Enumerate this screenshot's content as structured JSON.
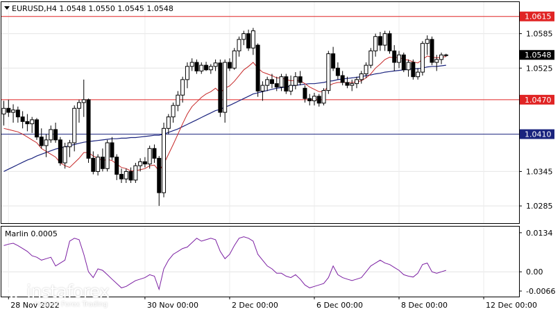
{
  "chart_data": [
    {
      "type": "candlestick",
      "title": "EURUSD,H4  1.0548 1.0550 1.0545 1.0548",
      "ylim": [
        1.0255,
        1.064
      ],
      "y_ticks": [
        "1.0585",
        "1.0525",
        "1.0345",
        "1.0285"
      ],
      "y_tick_values": [
        1.0585,
        1.0525,
        1.0345,
        1.0285
      ],
      "x_ticks": [
        "28 Nov 2022",
        "30 Nov 00:00",
        "2 Dec 00:00",
        "6 Dec 00:00",
        "8 Dec 00:00",
        "12 Dec 00:00"
      ],
      "x_tick_index": [
        1,
        30,
        48,
        66,
        84,
        102
      ],
      "horizontal_levels": [
        {
          "label": "1.0615",
          "value": 1.0615,
          "color": "#e02424"
        },
        {
          "label": "1.0470",
          "value": 1.047,
          "color": "#e02424"
        },
        {
          "label": "1.0410",
          "value": 1.041,
          "color": "#1a237e"
        }
      ],
      "current_price": {
        "label": "1.0548",
        "value": 1.0548
      },
      "candles": [
        [
          1.0445,
          1.0468,
          1.0425,
          1.0455
        ],
        [
          1.0455,
          1.047,
          1.044,
          1.0448
        ],
        [
          1.0448,
          1.0462,
          1.043,
          1.0452
        ],
        [
          1.0452,
          1.0458,
          1.043,
          1.044
        ],
        [
          1.044,
          1.045,
          1.042,
          1.0432
        ],
        [
          1.0432,
          1.0445,
          1.0415,
          1.0428
        ],
        [
          1.0428,
          1.044,
          1.0412,
          1.0435
        ],
        [
          1.0435,
          1.0438,
          1.04,
          1.0405
        ],
        [
          1.0405,
          1.042,
          1.0385,
          1.039
        ],
        [
          1.039,
          1.041,
          1.037,
          1.04
        ],
        [
          1.04,
          1.0425,
          1.0395,
          1.0418
        ],
        [
          1.0418,
          1.043,
          1.0395,
          1.04
        ],
        [
          1.04,
          1.0405,
          1.0355,
          1.036
        ],
        [
          1.036,
          1.0395,
          1.035,
          1.0388
        ],
        [
          1.0388,
          1.04,
          1.037,
          1.0395
        ],
        [
          1.0395,
          1.046,
          1.038,
          1.0455
        ],
        [
          1.0455,
          1.047,
          1.043,
          1.0465
        ],
        [
          1.0465,
          1.0505,
          1.044,
          1.047
        ],
        [
          1.047,
          1.0472,
          1.036,
          1.0368
        ],
        [
          1.0368,
          1.038,
          1.034,
          1.0345
        ],
        [
          1.0345,
          1.0375,
          1.0338,
          1.037
        ],
        [
          1.037,
          1.0385,
          1.0345,
          1.035
        ],
        [
          1.035,
          1.04,
          1.0345,
          1.0395
        ],
        [
          1.0395,
          1.0405,
          1.0365,
          1.037
        ],
        [
          1.037,
          1.0375,
          1.033,
          1.034
        ],
        [
          1.034,
          1.035,
          1.0325,
          1.0332
        ],
        [
          1.0332,
          1.035,
          1.0325,
          1.0345
        ],
        [
          1.0345,
          1.0352,
          1.0325,
          1.033
        ],
        [
          1.033,
          1.036,
          1.0325,
          1.0355
        ],
        [
          1.0355,
          1.0368,
          1.0345,
          1.0362
        ],
        [
          1.0362,
          1.037,
          1.0352,
          1.0358
        ],
        [
          1.0358,
          1.039,
          1.035,
          1.0385
        ],
        [
          1.0385,
          1.0392,
          1.036,
          1.0368
        ],
        [
          1.0368,
          1.0372,
          1.0285,
          1.0308
        ],
        [
          1.0308,
          1.043,
          1.03,
          1.042
        ],
        [
          1.042,
          1.0445,
          1.041,
          1.044
        ],
        [
          1.044,
          1.0465,
          1.043,
          1.046
        ],
        [
          1.046,
          1.0485,
          1.045,
          1.0478
        ],
        [
          1.0478,
          1.051,
          1.0465,
          1.0505
        ],
        [
          1.0505,
          1.0535,
          1.049,
          1.0528
        ],
        [
          1.0528,
          1.0542,
          1.052,
          1.0535
        ],
        [
          1.0535,
          1.054,
          1.0515,
          1.052
        ],
        [
          1.052,
          1.0535,
          1.0515,
          1.053
        ],
        [
          1.053,
          1.0536,
          1.052,
          1.0522
        ],
        [
          1.0522,
          1.0532,
          1.0515,
          1.0528
        ],
        [
          1.0528,
          1.054,
          1.052,
          1.0534
        ],
        [
          1.0534,
          1.054,
          1.044,
          1.0448
        ],
        [
          1.0448,
          1.054,
          1.043,
          1.0535
        ],
        [
          1.0535,
          1.0542,
          1.052,
          1.0525
        ],
        [
          1.0525,
          1.056,
          1.0522,
          1.0555
        ],
        [
          1.0555,
          1.058,
          1.0545,
          1.0575
        ],
        [
          1.0575,
          1.059,
          1.0565,
          1.0585
        ],
        [
          1.0585,
          1.0592,
          1.0555,
          1.056
        ],
        [
          1.056,
          1.0595,
          1.0548,
          1.059
        ],
        [
          1.0565,
          1.0568,
          1.0475,
          1.0485
        ],
        [
          1.0485,
          1.0502,
          1.0468,
          1.0495
        ],
        [
          1.0495,
          1.051,
          1.0485,
          1.0505
        ],
        [
          1.0505,
          1.0515,
          1.049,
          1.0498
        ],
        [
          1.0498,
          1.051,
          1.0485,
          1.0492
        ],
        [
          1.0492,
          1.0515,
          1.0485,
          1.051
        ],
        [
          1.051,
          1.0515,
          1.048,
          1.0485
        ],
        [
          1.0485,
          1.0512,
          1.0478,
          1.0495
        ],
        [
          1.0495,
          1.0518,
          1.0488,
          1.051
        ],
        [
          1.051,
          1.052,
          1.0495,
          1.05
        ],
        [
          1.049,
          1.0495,
          1.0465,
          1.0472
        ],
        [
          1.0472,
          1.048,
          1.046,
          1.0468
        ],
        [
          1.0468,
          1.0482,
          1.046,
          1.0476
        ],
        [
          1.0476,
          1.048,
          1.0458,
          1.0464
        ],
        [
          1.0464,
          1.049,
          1.046,
          1.0486
        ],
        [
          1.0486,
          1.0555,
          1.048,
          1.055
        ],
        [
          1.055,
          1.0562,
          1.052,
          1.0525
        ],
        [
          1.0525,
          1.0535,
          1.0505,
          1.0512
        ],
        [
          1.0512,
          1.052,
          1.0495,
          1.05
        ],
        [
          1.05,
          1.051,
          1.049,
          1.0495
        ],
        [
          1.0495,
          1.0505,
          1.0485,
          1.0498
        ],
        [
          1.0498,
          1.051,
          1.049,
          1.0505
        ],
        [
          1.0505,
          1.052,
          1.0498,
          1.0515
        ],
        [
          1.0515,
          1.0535,
          1.0508,
          1.053
        ],
        [
          1.053,
          1.056,
          1.0525,
          1.0555
        ],
        [
          1.0555,
          1.0585,
          1.0545,
          1.058
        ],
        [
          1.058,
          1.0588,
          1.0555,
          1.0565
        ],
        [
          1.0565,
          1.059,
          1.0555,
          1.0585
        ],
        [
          1.0585,
          1.059,
          1.055,
          1.0555
        ],
        [
          1.0555,
          1.0565,
          1.052,
          1.0535
        ],
        [
          1.0535,
          1.0555,
          1.0525,
          1.0548
        ],
        [
          1.0548,
          1.0552,
          1.0518,
          1.0522
        ],
        [
          1.0522,
          1.054,
          1.051,
          1.0535
        ],
        [
          1.0535,
          1.054,
          1.0505,
          1.051
        ],
        [
          1.051,
          1.0525,
          1.0505,
          1.0518
        ],
        [
          1.0518,
          1.0572,
          1.0512,
          1.0568
        ],
        [
          1.0568,
          1.0582,
          1.0548,
          1.0575
        ],
        [
          1.0575,
          1.058,
          1.053,
          1.0535
        ],
        [
          1.0535,
          1.0548,
          1.052,
          1.054
        ],
        [
          1.054,
          1.0552,
          1.0532,
          1.0548
        ],
        [
          1.0548,
          1.055,
          1.0545,
          1.0548
        ]
      ],
      "ema_red": [
        1.042,
        1.0418,
        1.0416,
        1.0414,
        1.041,
        1.0405,
        1.04,
        1.0395,
        1.0385,
        1.038,
        1.0375,
        1.037,
        1.036,
        1.0355,
        1.0352,
        1.036,
        1.0368,
        1.0378,
        1.0378,
        1.0372,
        1.0368,
        1.0364,
        1.0366,
        1.0364,
        1.0358,
        1.0352,
        1.035,
        1.0346,
        1.0346,
        1.0348,
        1.035,
        1.0355,
        1.0356,
        1.0346,
        1.0358,
        1.0375,
        1.0392,
        1.041,
        1.0428,
        1.0445,
        1.0458,
        1.0466,
        1.0474,
        1.048,
        1.0484,
        1.049,
        1.0482,
        1.049,
        1.0494,
        1.0502,
        1.0512,
        1.0522,
        1.0528,
        1.0535,
        1.0525,
        1.0518,
        1.0515,
        1.0512,
        1.0508,
        1.0508,
        1.0505,
        1.0503,
        1.0504,
        1.0503,
        1.0498,
        1.0492,
        1.0488,
        1.0484,
        1.0484,
        1.0494,
        1.0498,
        1.05,
        1.05,
        1.05,
        1.05,
        1.0501,
        1.0503,
        1.0508,
        1.0515,
        1.0525,
        1.0532,
        1.054,
        1.0544,
        1.0543,
        1.0544,
        1.054,
        1.0539,
        1.0536,
        1.0534,
        1.054,
        1.0546,
        1.0544,
        1.0543,
        1.0544,
        1.0545
      ],
      "ma_blue": [
        1.0345,
        1.0349,
        1.0353,
        1.0357,
        1.0361,
        1.0365,
        1.0368,
        1.0372,
        1.0375,
        1.0378,
        1.0381,
        1.0384,
        1.0386,
        1.0388,
        1.039,
        1.0392,
        1.0394,
        1.0396,
        1.0397,
        1.0398,
        1.0399,
        1.04,
        1.0401,
        1.0402,
        1.0402,
        1.0403,
        1.0403,
        1.0404,
        1.0404,
        1.0405,
        1.0406,
        1.0407,
        1.0408,
        1.0408,
        1.041,
        1.0413,
        1.0416,
        1.0419,
        1.0423,
        1.0427,
        1.0431,
        1.0435,
        1.0439,
        1.0443,
        1.0447,
        1.0451,
        1.0453,
        1.0457,
        1.046,
        1.0464,
        1.0468,
        1.0472,
        1.0476,
        1.048,
        1.0482,
        1.0484,
        1.0486,
        1.0488,
        1.049,
        1.0491,
        1.0492,
        1.0494,
        1.0495,
        1.0496,
        1.0497,
        1.0498,
        1.0498,
        1.0499,
        1.05,
        1.0502,
        1.0503,
        1.0505,
        1.0506,
        1.0507,
        1.0508,
        1.0509,
        1.051,
        1.0512,
        1.0513,
        1.0515,
        1.0516,
        1.0518,
        1.0519,
        1.052,
        1.0521,
        1.0522,
        1.0523,
        1.0524,
        1.0524,
        1.0525,
        1.0527,
        1.0528,
        1.0528,
        1.0529,
        1.053
      ]
    },
    {
      "type": "line",
      "title": "Marlin 0.0005",
      "ylim": [
        -0.0085,
        0.0155
      ],
      "y_ticks": [
        "0.0134",
        "0.00",
        "-0.0066"
      ],
      "y_tick_values": [
        0.0134,
        0.0,
        -0.0066
      ],
      "series": [
        {
          "color": "#7b1fa2",
          "values": [
            0.009,
            0.0095,
            0.0098,
            0.009,
            0.008,
            0.007,
            0.0055,
            0.005,
            0.004,
            0.0045,
            0.005,
            0.002,
            0.003,
            0.004,
            0.0105,
            0.0115,
            0.011,
            0.006,
            0.0,
            -0.002,
            0.001,
            0.0005,
            -0.001,
            -0.0025,
            -0.004,
            -0.0055,
            -0.005,
            -0.004,
            -0.003,
            -0.0025,
            -0.002,
            -0.001,
            -0.0015,
            -0.006,
            0.001,
            0.004,
            0.006,
            0.007,
            0.008,
            0.0085,
            0.01,
            0.0115,
            0.0105,
            0.011,
            0.0115,
            0.011,
            0.007,
            0.0045,
            0.006,
            0.009,
            0.0115,
            0.012,
            0.0115,
            0.0105,
            0.006,
            0.004,
            0.002,
            0.001,
            -0.0005,
            -0.0005,
            -0.0015,
            -0.002,
            -0.001,
            -0.0025,
            -0.0045,
            -0.0055,
            -0.005,
            -0.0045,
            -0.004,
            -0.002,
            0.002,
            -0.001,
            -0.002,
            -0.0025,
            -0.003,
            -0.0025,
            -0.002,
            0.0,
            0.002,
            0.003,
            0.004,
            0.003,
            0.0025,
            0.0015,
            0.0005,
            -0.001,
            -0.0015,
            -0.0018,
            -0.0005,
            0.0025,
            0.003,
            0.0,
            -0.0005,
            0.0,
            0.0005
          ]
        }
      ]
    }
  ],
  "watermark": {
    "brand": "instaforex",
    "tagline": "Instant Forex Trading"
  }
}
